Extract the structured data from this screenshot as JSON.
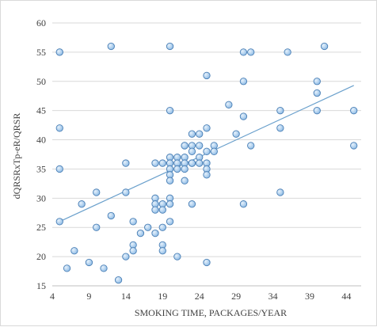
{
  "chart_data": {
    "type": "scatter",
    "title": "",
    "xlabel": "SMOKING TIME, PACKAGES/YEAR",
    "ylabel": "dQRSRxTp-eR/QRSR",
    "xlim": [
      4,
      46
    ],
    "ylim": [
      15,
      60
    ],
    "xticks": [
      4,
      9,
      14,
      19,
      24,
      29,
      34,
      39,
      44
    ],
    "yticks": [
      15,
      20,
      25,
      30,
      35,
      40,
      45,
      50,
      55,
      60
    ],
    "grid": "horizontal",
    "legend": "none",
    "colors": {
      "marker_fill": "#a9cdee",
      "marker_stroke": "#4a7fb5",
      "trendline": "#6aa0cc",
      "gridline": "#d9d9d9"
    },
    "trendline": {
      "type": "linear",
      "x": [
        5,
        45
      ],
      "y": [
        26,
        49.3
      ]
    },
    "points": [
      [
        5,
        55
      ],
      [
        5,
        55
      ],
      [
        5,
        42
      ],
      [
        5,
        35
      ],
      [
        5,
        26
      ],
      [
        6,
        18
      ],
      [
        7,
        21
      ],
      [
        8,
        29
      ],
      [
        9,
        19
      ],
      [
        10,
        31
      ],
      [
        10,
        25
      ],
      [
        11,
        18
      ],
      [
        12,
        27
      ],
      [
        12,
        56
      ],
      [
        13,
        16
      ],
      [
        14,
        36
      ],
      [
        14,
        31
      ],
      [
        14,
        20
      ],
      [
        15,
        26
      ],
      [
        15,
        22
      ],
      [
        15,
        21
      ],
      [
        16,
        24
      ],
      [
        17,
        25
      ],
      [
        18,
        36
      ],
      [
        18,
        30
      ],
      [
        18,
        29
      ],
      [
        18,
        28
      ],
      [
        18,
        24
      ],
      [
        19,
        36
      ],
      [
        19,
        29
      ],
      [
        19,
        28
      ],
      [
        19,
        25
      ],
      [
        19,
        22
      ],
      [
        19,
        21
      ],
      [
        20,
        56
      ],
      [
        20,
        45
      ],
      [
        20,
        37
      ],
      [
        20,
        36
      ],
      [
        20,
        35
      ],
      [
        20,
        34
      ],
      [
        20,
        33
      ],
      [
        20,
        30
      ],
      [
        20,
        29
      ],
      [
        20,
        26
      ],
      [
        21,
        37
      ],
      [
        21,
        36
      ],
      [
        21,
        35
      ],
      [
        21,
        20
      ],
      [
        22,
        39
      ],
      [
        22,
        39
      ],
      [
        22,
        37
      ],
      [
        22,
        36
      ],
      [
        22,
        35
      ],
      [
        22,
        33
      ],
      [
        23,
        41
      ],
      [
        23,
        39
      ],
      [
        23,
        38
      ],
      [
        23,
        36
      ],
      [
        23,
        36
      ],
      [
        23,
        29
      ],
      [
        24,
        41
      ],
      [
        24,
        39
      ],
      [
        24,
        37
      ],
      [
        24,
        36
      ],
      [
        25,
        51
      ],
      [
        25,
        42
      ],
      [
        25,
        38
      ],
      [
        25,
        36
      ],
      [
        25,
        35
      ],
      [
        25,
        34
      ],
      [
        25,
        19
      ],
      [
        26,
        39
      ],
      [
        26,
        38
      ],
      [
        28,
        46
      ],
      [
        29,
        41
      ],
      [
        30,
        55
      ],
      [
        30,
        50
      ],
      [
        30,
        44
      ],
      [
        30,
        29
      ],
      [
        31,
        55
      ],
      [
        31,
        39
      ],
      [
        35,
        45
      ],
      [
        35,
        42
      ],
      [
        35,
        31
      ],
      [
        36,
        55
      ],
      [
        40,
        50
      ],
      [
        40,
        48
      ],
      [
        40,
        45
      ],
      [
        41,
        56
      ],
      [
        45,
        45
      ],
      [
        45,
        39
      ]
    ]
  }
}
